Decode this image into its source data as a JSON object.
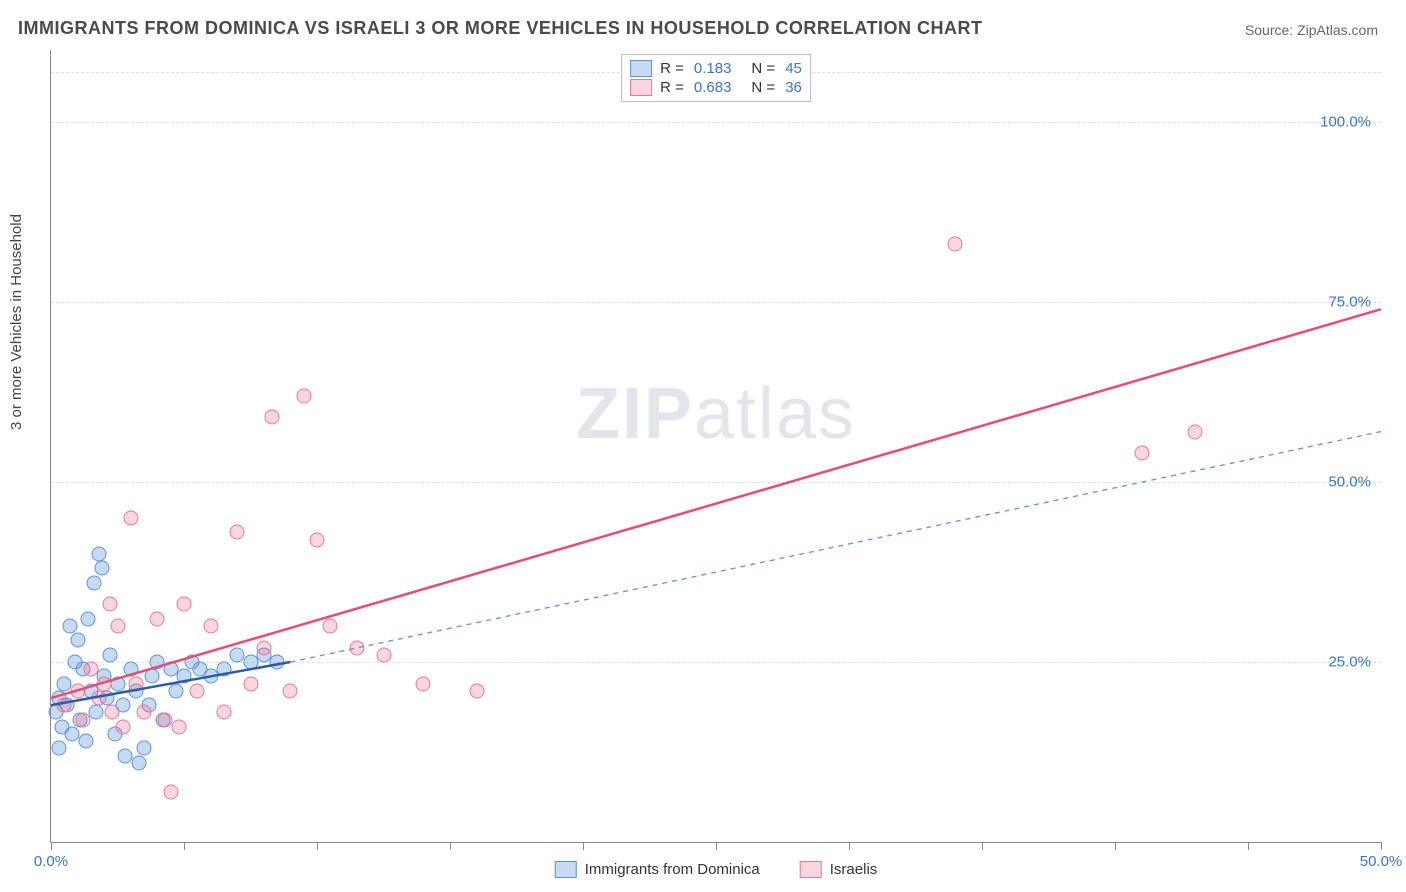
{
  "title": "IMMIGRANTS FROM DOMINICA VS ISRAELI 3 OR MORE VEHICLES IN HOUSEHOLD CORRELATION CHART",
  "source_label": "Source: ",
  "source_value": "ZipAtlas.com",
  "y_axis_label": "3 or more Vehicles in Household",
  "watermark_a": "ZIP",
  "watermark_b": "atlas",
  "chart": {
    "type": "scatter-with-regression",
    "background_color": "#ffffff",
    "grid_color": "#dddddd",
    "axis_color": "#888888",
    "xlim": [
      0,
      50
    ],
    "ylim": [
      0,
      110
    ],
    "x_ticks": [
      0,
      5,
      10,
      15,
      20,
      25,
      30,
      35,
      40,
      45,
      50
    ],
    "x_tick_labels": {
      "0": "0.0%",
      "50": "50.0%"
    },
    "y_gridlines": [
      25,
      50,
      75,
      100,
      107
    ],
    "y_tick_labels": {
      "25": "25.0%",
      "50": "50.0%",
      "75": "75.0%",
      "100": "100.0%"
    },
    "marker_radius": 7.5,
    "marker_fill_opacity": 0.35,
    "marker_stroke_width": 1.2,
    "label_fontsize": 15,
    "title_fontsize": 18,
    "tick_label_color": "#3a74c4"
  },
  "series": {
    "blue": {
      "name": "Immigrants from Dominica",
      "color_fill": "rgba(92,148,214,0.35)",
      "color_stroke": "#5c94d6",
      "R": "0.183",
      "N": "45",
      "regression": {
        "x1": 0,
        "y1": 19,
        "x2": 9,
        "y2": 25,
        "stroke": "#2e5aa8",
        "width": 2.5,
        "dash": "none"
      },
      "regression_ext": {
        "x1": 9,
        "y1": 25,
        "x2": 50,
        "y2": 57,
        "stroke": "#5c94d6",
        "width": 1.3,
        "dash": "5,5"
      },
      "points": [
        [
          0.2,
          18
        ],
        [
          0.3,
          20
        ],
        [
          0.4,
          16
        ],
        [
          0.5,
          22
        ],
        [
          0.6,
          19
        ],
        [
          0.7,
          30
        ],
        [
          0.8,
          15
        ],
        [
          0.9,
          25
        ],
        [
          1.0,
          28
        ],
        [
          1.1,
          17
        ],
        [
          1.2,
          24
        ],
        [
          1.3,
          14
        ],
        [
          1.5,
          21
        ],
        [
          1.6,
          36
        ],
        [
          1.7,
          18
        ],
        [
          1.8,
          40
        ],
        [
          1.9,
          38
        ],
        [
          2.0,
          23
        ],
        [
          2.1,
          20
        ],
        [
          2.2,
          26
        ],
        [
          2.4,
          15
        ],
        [
          2.5,
          22
        ],
        [
          2.7,
          19
        ],
        [
          2.8,
          12
        ],
        [
          3.0,
          24
        ],
        [
          3.2,
          21
        ],
        [
          3.3,
          11
        ],
        [
          3.5,
          13
        ],
        [
          3.7,
          19
        ],
        [
          3.8,
          23
        ],
        [
          4.0,
          25
        ],
        [
          4.2,
          17
        ],
        [
          4.5,
          24
        ],
        [
          4.7,
          21
        ],
        [
          5.0,
          23
        ],
        [
          5.3,
          25
        ],
        [
          5.6,
          24
        ],
        [
          6.0,
          23
        ],
        [
          6.5,
          24
        ],
        [
          7.0,
          26
        ],
        [
          7.5,
          25
        ],
        [
          8.0,
          26
        ],
        [
          8.5,
          25
        ],
        [
          1.4,
          31
        ],
        [
          0.3,
          13
        ]
      ]
    },
    "pink": {
      "name": "Israelis",
      "color_fill": "rgba(231,120,150,0.30)",
      "color_stroke": "#e77896",
      "R": "0.683",
      "N": "36",
      "regression": {
        "x1": 0,
        "y1": 20,
        "x2": 50,
        "y2": 74,
        "stroke": "#e54d77",
        "width": 2.5,
        "dash": "none"
      },
      "points": [
        [
          0.5,
          19
        ],
        [
          1.0,
          21
        ],
        [
          1.2,
          17
        ],
        [
          1.5,
          24
        ],
        [
          1.8,
          20
        ],
        [
          2.0,
          22
        ],
        [
          2.3,
          18
        ],
        [
          2.5,
          30
        ],
        [
          2.7,
          16
        ],
        [
          3.0,
          45
        ],
        [
          3.2,
          22
        ],
        [
          3.5,
          18
        ],
        [
          4.0,
          31
        ],
        [
          4.3,
          17
        ],
        [
          4.5,
          7
        ],
        [
          5.0,
          33
        ],
        [
          5.5,
          21
        ],
        [
          6.0,
          30
        ],
        [
          6.5,
          18
        ],
        [
          7.0,
          43
        ],
        [
          7.5,
          22
        ],
        [
          8.0,
          27
        ],
        [
          8.3,
          59
        ],
        [
          9.0,
          21
        ],
        [
          9.5,
          62
        ],
        [
          10.0,
          42
        ],
        [
          10.5,
          30
        ],
        [
          11.5,
          27
        ],
        [
          12.5,
          26
        ],
        [
          14.0,
          22
        ],
        [
          16.0,
          21
        ],
        [
          34.0,
          83
        ],
        [
          41.0,
          54
        ],
        [
          43.0,
          57
        ],
        [
          4.8,
          16
        ],
        [
          2.2,
          33
        ]
      ]
    }
  },
  "legend_top": {
    "r_label": "R =",
    "n_label": "N ="
  }
}
